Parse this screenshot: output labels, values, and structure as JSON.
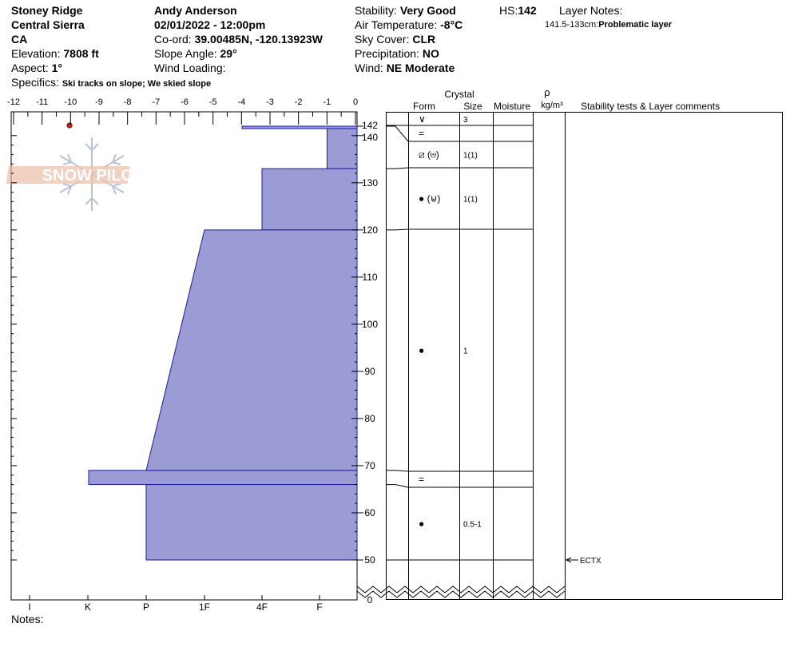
{
  "header": {
    "location": "Stoney Ridge",
    "range": "Central Sierra",
    "state": "CA",
    "elevation_label": "Elevation:",
    "elevation_value": "7808 ft",
    "aspect_label": "Aspect:",
    "aspect_value": "1°",
    "specifics_label": "Specifics:",
    "specifics_value": "Ski tracks on slope; We skied slope",
    "observer": "Andy Anderson",
    "datetime": "02/01/2022 - 12:00pm",
    "coord_label": "Co-ord:",
    "coord_value": "39.00485N, -120.13923W",
    "slope_label": "Slope Angle:",
    "slope_value": "29°",
    "wind_loading_label": "Wind Loading:",
    "stability_label": "Stability:",
    "stability_value": "Very Good",
    "air_temp_label": "Air Temperature:",
    "air_temp_value": "-8°C",
    "sky_label": "Sky Cover:",
    "sky_value": "CLR",
    "precip_label": "Precipitation:",
    "precip_value": "NO",
    "wind_label": "Wind:",
    "wind_value": "NE Moderate",
    "hs_label": "HS:",
    "hs_value": "142",
    "layer_notes_label": "Layer Notes:",
    "layer_note_range": "141.5-133cm:",
    "layer_note_text": "Problematic layer"
  },
  "logo": {
    "text": "SNOW PILOT"
  },
  "temp_axis": {
    "ticks": [
      "-12",
      "-11",
      "-10",
      "-9",
      "-8",
      "-7",
      "-6",
      "-5",
      "-4",
      "-3",
      "-2",
      "-1",
      "0"
    ]
  },
  "hardness_axis": {
    "labels": [
      "I",
      "K",
      "P",
      "1F",
      "4F",
      "F"
    ]
  },
  "depth_axis": {
    "labels": [
      "0",
      "50",
      "60",
      "70",
      "80",
      "90",
      "100",
      "110",
      "120",
      "130",
      "140",
      "142"
    ]
  },
  "column_headers": {
    "crystal": "Crystal",
    "form": "Form",
    "size": "Size",
    "moisture": "Moisture",
    "rho": "ρ",
    "density_unit": "kg/m³",
    "comments": "Stability tests & Layer comments"
  },
  "layers": [
    {
      "top": 142,
      "bottom": 141.5,
      "form": "∨",
      "size": "3"
    },
    {
      "top": 141.5,
      "bottom": 138,
      "form": "=",
      "size": ""
    },
    {
      "top": 138,
      "bottom": 133,
      "form": "⧄ (⊌)",
      "size": "1(1)"
    },
    {
      "top": 133,
      "bottom": 120,
      "form": "● (⊌)",
      "size": "1(1)"
    },
    {
      "top": 120,
      "bottom": 69,
      "form": "●",
      "size": "1"
    },
    {
      "top": 69,
      "bottom": 66,
      "form": "=",
      "size": ""
    },
    {
      "top": 66,
      "bottom": 50,
      "form": "●",
      "size": "0.5-1"
    }
  ],
  "stability_tests": [
    {
      "depth": 50,
      "label": "ECTX"
    }
  ],
  "hardness_profile_color": "#9b9bd6",
  "temperature_point_color": "#cc2222",
  "notes_label": "Notes:"
}
